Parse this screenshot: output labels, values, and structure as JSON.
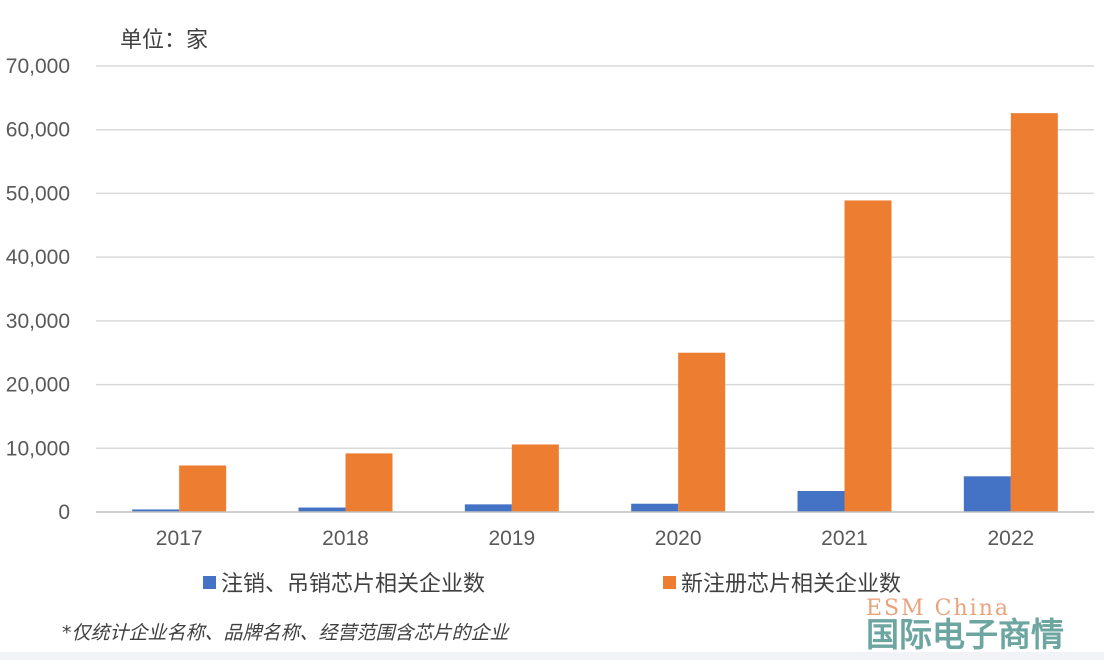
{
  "chart_data": {
    "type": "bar",
    "unit_label": "单位：家",
    "categories": [
      "2017",
      "2018",
      "2019",
      "2020",
      "2021",
      "2022"
    ],
    "series": [
      {
        "name": "注销、吊销芯片相关企业数",
        "values": [
          400,
          700,
          1200,
          1300,
          3300,
          5600
        ],
        "color": "#4472c4"
      },
      {
        "name": "新注册芯片相关企业数",
        "values": [
          7300,
          9200,
          10600,
          25000,
          48900,
          62600
        ],
        "color": "#ed7d31"
      }
    ],
    "ylim": [
      0,
      70000
    ],
    "yticks": [
      "0",
      "10,000",
      "20,000",
      "30,000",
      "40,000",
      "50,000",
      "60,000",
      "70,000"
    ],
    "grid": true,
    "legend_position": "bottom",
    "footnote": "*仅统计企业名称、品牌名称、经营范围含芯片的企业"
  },
  "watermark": {
    "english": "ESM China",
    "chinese": "国际电子商情"
  }
}
